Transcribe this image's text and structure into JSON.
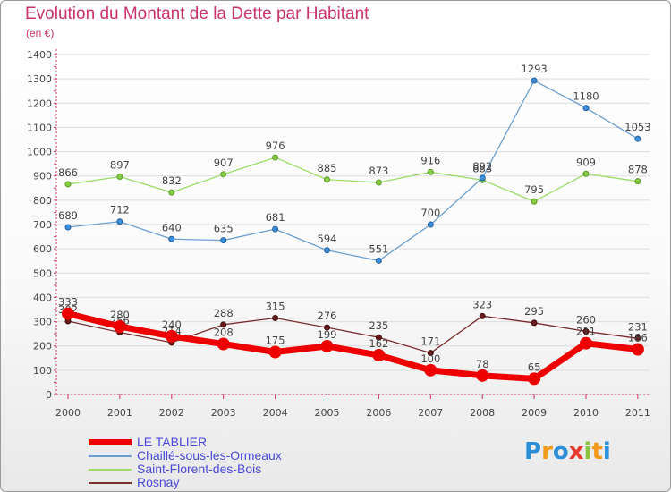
{
  "title": "Evolution du Montant de la Dette par Habitant",
  "unit": "(en €)",
  "logo": {
    "text": "Proxiti",
    "letter_colors": [
      "#2b8fd8",
      "#f29a1c",
      "#2b8fd8",
      "#e83b2e",
      "#8cc43f",
      "#f29a1c",
      "#2b8fd8"
    ]
  },
  "chart_data": {
    "type": "line",
    "x": [
      "2000",
      "2001",
      "2002",
      "2003",
      "2004",
      "2005",
      "2006",
      "2007",
      "2008",
      "2009",
      "2010",
      "2011"
    ],
    "y_ticks": [
      "0",
      "100",
      "200",
      "300",
      "400",
      "500",
      "600",
      "700",
      "800",
      "900",
      "1000",
      "1100",
      "1200",
      "1300",
      "1400"
    ],
    "ylim": [
      0,
      1400
    ],
    "grid": "horizontal",
    "legend": "bottom-left",
    "series": [
      {
        "name": "Saint-Florent-des-Bois",
        "color": "#99dd66",
        "values": [
          866,
          897,
          832,
          907,
          976,
          885,
          873,
          916,
          883,
          795,
          909,
          878
        ],
        "labels": [
          "866",
          "897",
          "832",
          "907",
          "976",
          "885",
          "873",
          "916",
          "883",
          "795",
          "909",
          "878"
        ]
      },
      {
        "name": "Chaillé-sous-les-Ormeaux",
        "color": "#6c9fd0",
        "values": [
          689,
          712,
          640,
          635,
          681,
          594,
          551,
          700,
          892,
          1293,
          1180,
          1053
        ],
        "labels": [
          "689",
          "712",
          "640",
          "635",
          "681",
          "594",
          "551",
          "700",
          "892",
          "1293",
          "1180",
          "1053"
        ]
      },
      {
        "name": "Rosnay",
        "color": "#7a2e2e",
        "values": [
          302,
          256,
          214,
          288,
          315,
          276,
          235,
          171,
          323,
          295,
          260,
          231
        ],
        "labels": [
          "302",
          "256",
          "214",
          "288",
          "315",
          "276",
          "235",
          "171",
          "323",
          "295",
          "260",
          "231"
        ]
      },
      {
        "name": "LE TABLIER",
        "color": "#ee0000",
        "values": [
          333,
          280,
          240,
          208,
          175,
          199,
          162,
          100,
          78,
          65,
          211,
          186
        ],
        "labels": [
          "333",
          "280",
          "240",
          "208",
          "175",
          "199",
          "162",
          "100",
          "78",
          "65",
          "211",
          "186"
        ]
      }
    ],
    "legend_order": [
      "LE TABLIER",
      "Chaillé-sous-les-Ormeaux",
      "Saint-Florent-des-Bois",
      "Rosnay"
    ]
  }
}
